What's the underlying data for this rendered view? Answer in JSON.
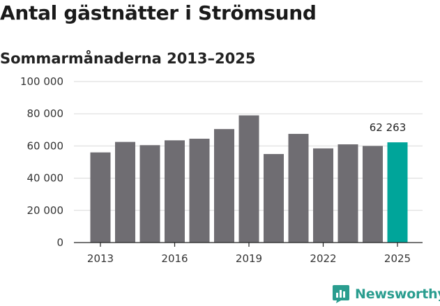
{
  "header": {
    "title": "Antal gästnätter i Strömsund",
    "subtitle": "Sommarmånaderna 2013–2025"
  },
  "brand": {
    "name": "Newsworthy",
    "logo_icon": "newsworthy-logo-icon"
  },
  "colors": {
    "bar": "#6f6d72",
    "highlight": "#00a59a",
    "grid": "#d9d9d9",
    "axis": "#222222",
    "brand": "#2a9d8f"
  },
  "chart_data": {
    "type": "bar",
    "title": "Antal gästnätter i Strömsund",
    "subtitle": "Sommarmånaderna 2013–2025",
    "xlabel": "",
    "ylabel": "",
    "categories": [
      "2013",
      "2014",
      "2015",
      "2016",
      "2017",
      "2018",
      "2019",
      "2020",
      "2021",
      "2022",
      "2023",
      "2024",
      "2025"
    ],
    "values": [
      56000,
      62500,
      60500,
      63500,
      64500,
      70500,
      79000,
      55000,
      67500,
      58500,
      61000,
      60000,
      62263
    ],
    "highlight_index": 12,
    "ylim": [
      0,
      100000
    ],
    "y_ticks": [
      0,
      20000,
      40000,
      60000,
      80000,
      100000
    ],
    "y_tick_labels": [
      "0",
      "20 000",
      "40 000",
      "60 000",
      "80 000",
      "100 000"
    ],
    "x_tick_labels": [
      "2013",
      "2016",
      "2019",
      "2022",
      "2025"
    ],
    "data_labels": [
      {
        "category": "2025",
        "text": "62 263"
      }
    ],
    "grid": true,
    "legend": "none"
  }
}
